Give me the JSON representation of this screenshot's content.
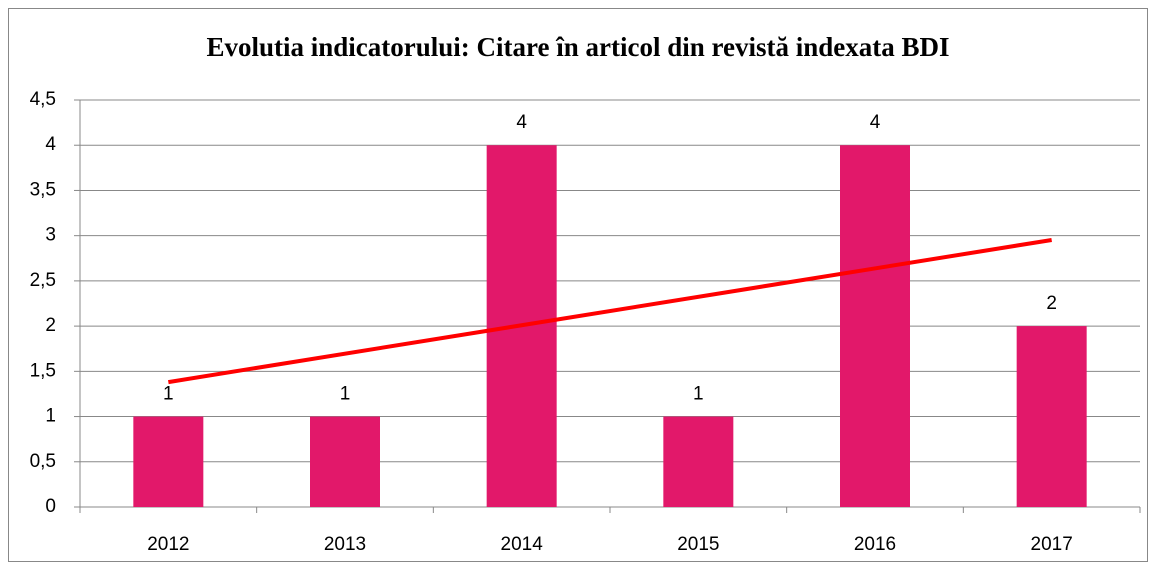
{
  "chart_data": {
    "type": "bar",
    "title": "Evolutia indicatorului: Citare în articol din revistă indexata BDI",
    "categories": [
      "2012",
      "2013",
      "2014",
      "2015",
      "2016",
      "2017"
    ],
    "values": [
      1,
      1,
      4,
      1,
      4,
      2
    ],
    "color": "#e2186a",
    "ylim": [
      0,
      4.5
    ],
    "yticks": [
      0,
      {
        "value": 0.5,
        "label": "0,5"
      },
      1,
      {
        "value": 1.5,
        "label": "1,5"
      },
      2,
      {
        "value": 2.5,
        "label": "2,5"
      },
      3,
      {
        "value": 3.5,
        "label": "3,5"
      },
      4,
      {
        "value": 4.5,
        "label": "4,5"
      }
    ],
    "grid": true,
    "trendline": {
      "kind": "linear",
      "color": "#ff0000"
    }
  }
}
